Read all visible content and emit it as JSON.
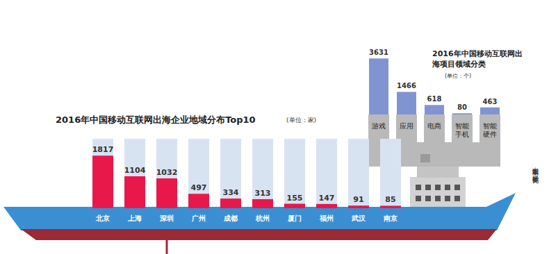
{
  "chart_data": [
    {
      "type": "bar",
      "title": "2016年中国移动互联网出海企业地域分布Top10",
      "subtitle": "(单位：家)",
      "categories": [
        "北京",
        "上海",
        "深圳",
        "广州",
        "成都",
        "杭州",
        "厦门",
        "福州",
        "武汉",
        "南京"
      ],
      "values": [
        1817,
        1104,
        1032,
        497,
        334,
        313,
        155,
        147,
        91,
        85
      ],
      "color": "#e8194a",
      "ylim": [
        0,
        2400
      ],
      "data_labels": true,
      "tick_labels": "x",
      "grid": false,
      "annotations": [
        "本版制图：张妍 许英剑"
      ]
    },
    {
      "type": "bar",
      "title": "2016年中国移动互联网出海项目领域分类",
      "subtitle": "(单位：个)",
      "categories": [
        "游戏",
        "应用",
        "电商",
        "智能手机",
        "智能硬件"
      ],
      "values": [
        3631,
        1466,
        618,
        80,
        463
      ],
      "color": "#8094d2",
      "ylim": [
        0,
        4500
      ],
      "data_labels": true,
      "tick_labels": "x",
      "grid": false
    }
  ]
}
